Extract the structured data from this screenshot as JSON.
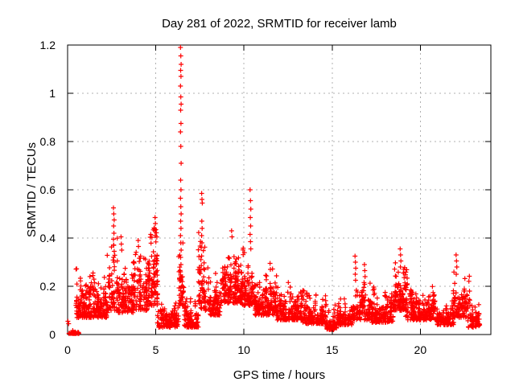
{
  "chart_data": {
    "type": "scatter",
    "title": "Day 281 of 2022, SRMTID for receiver lamb",
    "xlabel": "GPS time / hours",
    "ylabel": "SRMTID / TECUs",
    "xlim": [
      0,
      24
    ],
    "ylim": [
      0,
      1.2
    ],
    "xticks": {
      "values": [
        0,
        5,
        10,
        15,
        20
      ],
      "labels": [
        "0",
        "5",
        "10",
        "15",
        "20"
      ]
    },
    "yticks": {
      "values": [
        0,
        0.2,
        0.4,
        0.6,
        0.8,
        1,
        1.2
      ],
      "labels": [
        "0",
        "0.2",
        "0.4",
        "0.6",
        "0.8",
        "1",
        "1.2"
      ]
    },
    "grid": true,
    "legend": "none",
    "marker": "plus",
    "marker_size_px": 7,
    "marker_color": "#ff0000",
    "background_color": "#ffffff",
    "border_color": "#000000",
    "grid_color": "#b0b0b0",
    "seed": 281,
    "bands": [
      {
        "x0": 0.15,
        "x1": 0.62,
        "cols": 10,
        "ppc": 4,
        "lo": 0.0,
        "hi": 0.018
      },
      {
        "x0": 0.45,
        "x1": 2.25,
        "cols": 36,
        "ppc": 6,
        "lo": 0.07,
        "hi": 0.28
      },
      {
        "x0": 2.3,
        "x1": 2.85,
        "cols": 10,
        "ppc": 6,
        "lo": 0.1,
        "hi": 0.44
      },
      {
        "x0": 2.85,
        "x1": 3.7,
        "cols": 16,
        "ppc": 6,
        "lo": 0.09,
        "hi": 0.35
      },
      {
        "x0": 3.7,
        "x1": 4.5,
        "cols": 16,
        "ppc": 6,
        "lo": 0.1,
        "hi": 0.4
      },
      {
        "x0": 4.5,
        "x1": 5.15,
        "cols": 13,
        "ppc": 7,
        "lo": 0.12,
        "hi": 0.48
      },
      {
        "x0": 5.15,
        "x1": 6.3,
        "cols": 22,
        "ppc": 6,
        "lo": 0.03,
        "hi": 0.16
      },
      {
        "x0": 6.3,
        "x1": 6.6,
        "cols": 6,
        "ppc": 6,
        "lo": 0.12,
        "hi": 0.47
      },
      {
        "x0": 6.6,
        "x1": 7.4,
        "cols": 16,
        "ppc": 5,
        "lo": 0.03,
        "hi": 0.2
      },
      {
        "x0": 7.4,
        "x1": 8.0,
        "cols": 12,
        "ppc": 6,
        "lo": 0.1,
        "hi": 0.45
      },
      {
        "x0": 8.0,
        "x1": 8.7,
        "cols": 14,
        "ppc": 6,
        "lo": 0.08,
        "hi": 0.28
      },
      {
        "x0": 8.7,
        "x1": 9.9,
        "cols": 24,
        "ppc": 7,
        "lo": 0.13,
        "hi": 0.41
      },
      {
        "x0": 9.9,
        "x1": 10.6,
        "cols": 14,
        "ppc": 7,
        "lo": 0.12,
        "hi": 0.38
      },
      {
        "x0": 10.6,
        "x1": 11.9,
        "cols": 26,
        "ppc": 6,
        "lo": 0.08,
        "hi": 0.28
      },
      {
        "x0": 11.9,
        "x1": 13.3,
        "cols": 28,
        "ppc": 6,
        "lo": 0.06,
        "hi": 0.23
      },
      {
        "x0": 13.3,
        "x1": 14.7,
        "cols": 28,
        "ppc": 6,
        "lo": 0.045,
        "hi": 0.19
      },
      {
        "x0": 14.7,
        "x1": 15.3,
        "cols": 12,
        "ppc": 6,
        "lo": 0.02,
        "hi": 0.13
      },
      {
        "x0": 15.3,
        "x1": 16.15,
        "cols": 17,
        "ppc": 5,
        "lo": 0.04,
        "hi": 0.16
      },
      {
        "x0": 16.15,
        "x1": 17.2,
        "cols": 20,
        "ppc": 6,
        "lo": 0.06,
        "hi": 0.23
      },
      {
        "x0": 17.2,
        "x1": 18.45,
        "cols": 25,
        "ppc": 6,
        "lo": 0.05,
        "hi": 0.2
      },
      {
        "x0": 18.45,
        "x1": 19.25,
        "cols": 16,
        "ppc": 7,
        "lo": 0.1,
        "hi": 0.31
      },
      {
        "x0": 19.25,
        "x1": 20.9,
        "cols": 32,
        "ppc": 6,
        "lo": 0.06,
        "hi": 0.21
      },
      {
        "x0": 20.9,
        "x1": 21.9,
        "cols": 20,
        "ppc": 5,
        "lo": 0.04,
        "hi": 0.15
      },
      {
        "x0": 21.9,
        "x1": 22.75,
        "cols": 17,
        "ppc": 6,
        "lo": 0.07,
        "hi": 0.27
      },
      {
        "x0": 22.75,
        "x1": 23.3,
        "cols": 11,
        "ppc": 5,
        "lo": 0.03,
        "hi": 0.14
      }
    ],
    "spikes": [
      {
        "x": 6.42,
        "ys": [
          1.19,
          1.155,
          1.12,
          1.095,
          1.07,
          1.03,
          0.985,
          0.955,
          0.93,
          0.875,
          0.84,
          0.78,
          0.71,
          0.64,
          0.6,
          0.565,
          0.53,
          0.5,
          0.47,
          0.44,
          0.41,
          0.38,
          0.35,
          0.32,
          0.29,
          0.26,
          0.23
        ]
      },
      {
        "x": 2.62,
        "ys": [
          0.525,
          0.5,
          0.475,
          0.45,
          0.42,
          0.395,
          0.37,
          0.345,
          0.32,
          0.3
        ]
      },
      {
        "x": 3.05,
        "ys": [
          0.405,
          0.375,
          0.35
        ]
      },
      {
        "x": 4.02,
        "ys": [
          0.39,
          0.365
        ]
      },
      {
        "x": 4.98,
        "ys": [
          0.485,
          0.46,
          0.435,
          0.41
        ]
      },
      {
        "x": 7.62,
        "ys": [
          0.585,
          0.56,
          0.545,
          0.47,
          0.44,
          0.41,
          0.38
        ]
      },
      {
        "x": 9.32,
        "ys": [
          0.43,
          0.405
        ]
      },
      {
        "x": 10.37,
        "ys": [
          0.6,
          0.555,
          0.52,
          0.485,
          0.45,
          0.415,
          0.385,
          0.355
        ]
      },
      {
        "x": 11.5,
        "ys": [
          0.295,
          0.27
        ]
      },
      {
        "x": 16.32,
        "ys": [
          0.325,
          0.3,
          0.275,
          0.25,
          0.225
        ]
      },
      {
        "x": 16.85,
        "ys": [
          0.29,
          0.265,
          0.24
        ]
      },
      {
        "x": 18.88,
        "ys": [
          0.355,
          0.33,
          0.305,
          0.28
        ]
      },
      {
        "x": 22.05,
        "ys": [
          0.33,
          0.305,
          0.28,
          0.25
        ]
      }
    ],
    "points": [
      [
        0.02,
        0.055
      ],
      [
        0.06,
        0.045
      ]
    ]
  }
}
